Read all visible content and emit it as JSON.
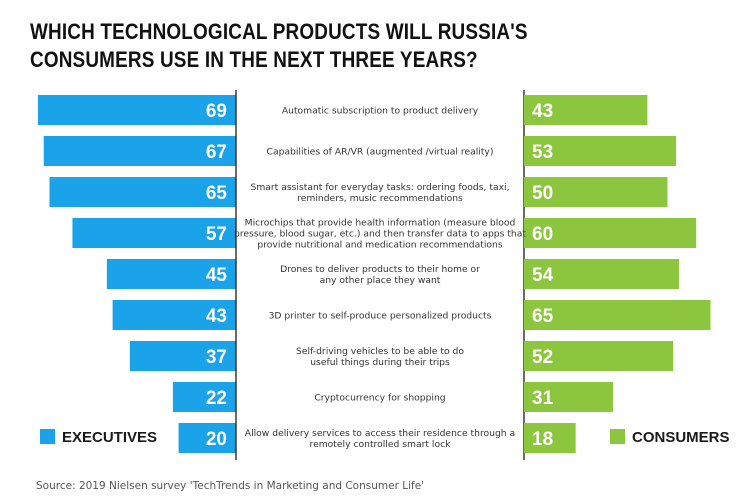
{
  "title": "WHICH TECHNOLOGICAL PRODUCTS WILL RUSSIA'S CONSUMERS USE IN THE NEXT THREE YEARS?",
  "source": "Source: 2019 Nielsen survey 'TechTrends in Marketing and Consumer Life'",
  "colors": {
    "executives": "#1aa3e8",
    "consumers": "#8cc63f"
  },
  "chart_data": {
    "type": "bar",
    "orientation": "diverging-horizontal",
    "title": "WHICH TECHNOLOGICAL PRODUCTS WILL RUSSIA'S CONSUMERS USE IN THE NEXT THREE YEARS?",
    "categories": [
      "Automatic subscription to product delivery",
      "Capabilities of AR/VR (augmented /virtual reality)",
      "Smart assistant for everyday tasks: ordering foods, taxi, reminders, music recommendations",
      "Microchips that provide health information (measure blood pressure, blood sugar, etc.) and then transfer data to apps that provide nutritional and medication recommendations",
      "Drones to deliver products to their home or any other place they want",
      "3D printer to self-produce personalized products",
      "Self-driving vehicles to be able to do useful things during their trips",
      "Cryptocurrency for shopping",
      "Allow delivery services to access their residence through a remotely controlled smart lock"
    ],
    "category_lines": [
      [
        "Automatic subscription to product delivery"
      ],
      [
        "Capabilities of AR/VR (augmented /virtual reality)"
      ],
      [
        "Smart assistant for everyday tasks: ordering foods, taxi,",
        "reminders, music recommendations"
      ],
      [
        "Microchips that provide health information (measure blood",
        "pressure, blood sugar, etc.) and then transfer data to apps that",
        "provide nutritional and medication recommendations"
      ],
      [
        "Drones to deliver products to their home or",
        "any other place they want"
      ],
      [
        "3D printer to self-produce personalized products"
      ],
      [
        "Self-driving vehicles to be able to do",
        "useful things during their trips"
      ],
      [
        "Cryptocurrency for shopping"
      ],
      [
        "Allow delivery services to access their residence through a",
        "remotely controlled smart lock"
      ]
    ],
    "series": [
      {
        "name": "EXECUTIVES",
        "values": [
          69,
          67,
          65,
          57,
          45,
          43,
          37,
          22,
          20
        ]
      },
      {
        "name": "CONSUMERS",
        "values": [
          43,
          53,
          50,
          60,
          54,
          65,
          52,
          31,
          18
        ]
      }
    ],
    "xlim": [
      0,
      70
    ],
    "legend": {
      "executives": "EXECUTIVES",
      "consumers": "CONSUMERS",
      "placement": "bottom"
    }
  }
}
